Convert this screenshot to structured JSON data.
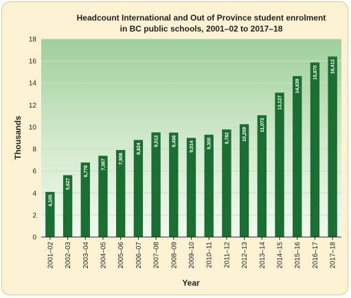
{
  "chart_data": {
    "type": "bar",
    "title_lines": [
      "Headcount International and Out of Province student enrolment",
      "in BC public schools, 2001–02 to 2017–18"
    ],
    "xlabel": "Year",
    "ylabel": "Thousands",
    "ylim": [
      0,
      18
    ],
    "yticks": [
      "0",
      "2",
      "4",
      "6",
      "8",
      "10",
      "12",
      "14",
      "16",
      "18"
    ],
    "categories": [
      "2001–02",
      "2002–03",
      "2003–04",
      "2004–05",
      "2005–06",
      "2006–07",
      "2007–08",
      "2008–09",
      "2009–10",
      "2010–11",
      "2011–12",
      "2012–13",
      "2013–14",
      "2014–15",
      "2015–16",
      "2016–17",
      "2017–18"
    ],
    "values": [
      4.105,
      5.627,
      6.778,
      7.387,
      7.908,
      8.824,
      9.512,
      9.498,
      9.014,
      9.3,
      9.782,
      10.259,
      11.073,
      13.127,
      14.639,
      15.87,
      16.412
    ],
    "data_labels": [
      "4,105",
      "5,627",
      "6,778",
      "7,387",
      "7,908",
      "8,824",
      "9,512",
      "9,498",
      "9,014",
      "9,300",
      "9,782",
      "10,259",
      "11,073",
      "13,127",
      "14,639",
      "15,870",
      "16,412"
    ],
    "grid": true,
    "colors": {
      "bar": "#1a6e32",
      "bar_label": "#ffffff",
      "plot_top": "#9fcf9c",
      "plot_bottom": "#f2f9ef",
      "grid": "#c6e2c1",
      "frame_background": "#fdf3d4",
      "frame_border": "#e0c98a"
    }
  }
}
